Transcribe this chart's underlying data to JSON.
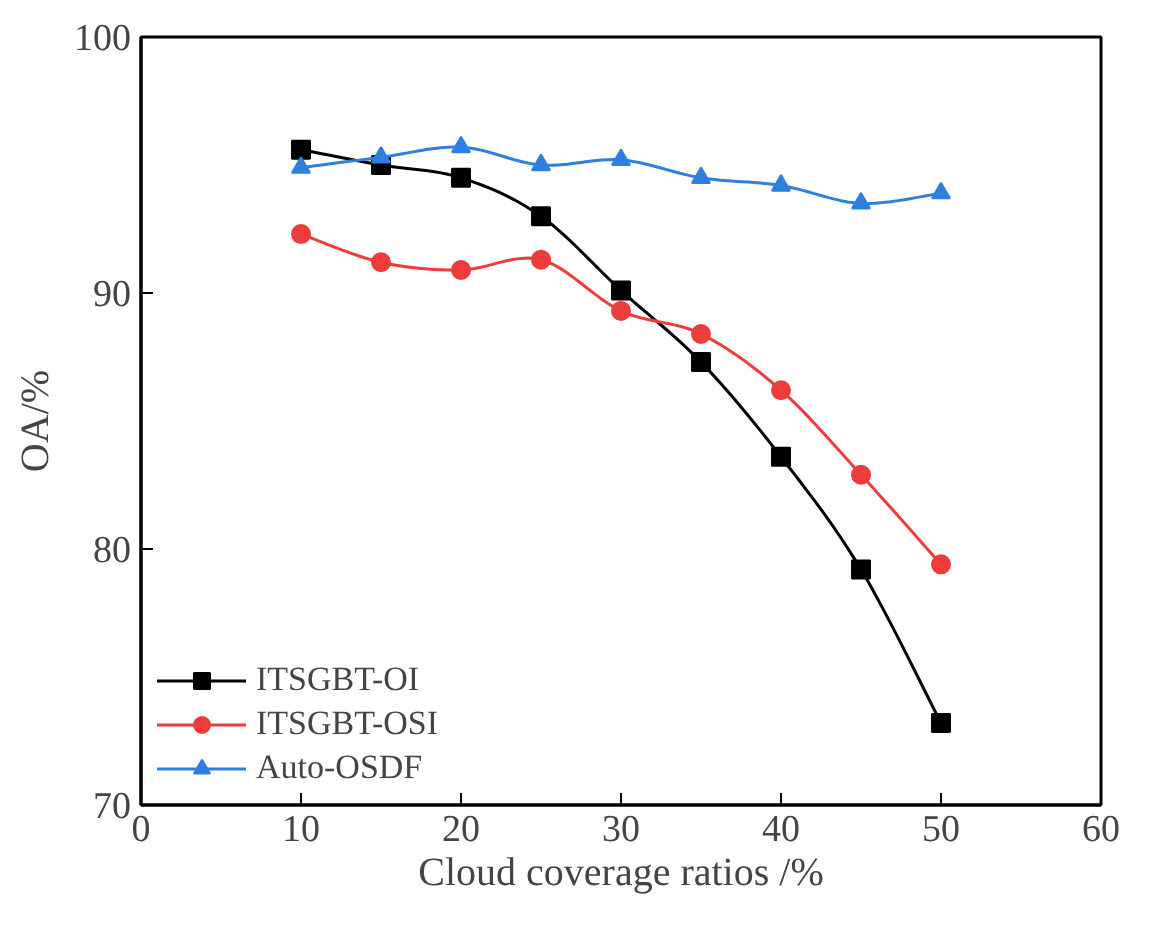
{
  "chart_data": {
    "type": "line",
    "xlabel": "Cloud coverage ratios /%",
    "ylabel": "OA/%",
    "x": [
      10,
      15,
      20,
      25,
      30,
      35,
      40,
      45,
      50
    ],
    "series": [
      {
        "name": "ITSGBT-OI",
        "color": "#000000",
        "marker": "square",
        "values": [
          95.6,
          95.0,
          94.5,
          93.0,
          90.1,
          87.3,
          83.6,
          79.2,
          73.2
        ]
      },
      {
        "name": "ITSGBT-OSI",
        "color": "#ee3b3b",
        "marker": "circle",
        "values": [
          92.3,
          91.2,
          90.9,
          91.3,
          89.3,
          88.4,
          86.2,
          82.9,
          79.4
        ]
      },
      {
        "name": "Auto-OSDF",
        "color": "#2e7fe0",
        "marker": "triangle",
        "values": [
          94.9,
          95.3,
          95.7,
          95.0,
          95.2,
          94.5,
          94.2,
          93.5,
          93.9
        ]
      }
    ],
    "xlim": [
      0,
      60
    ],
    "xticks": [
      0,
      10,
      20,
      30,
      40,
      50,
      60
    ],
    "ylim": [
      70,
      100
    ],
    "yticks": [
      70,
      80,
      90,
      100
    ],
    "grid": false,
    "legend": "bottom left",
    "line_style": "solid"
  }
}
